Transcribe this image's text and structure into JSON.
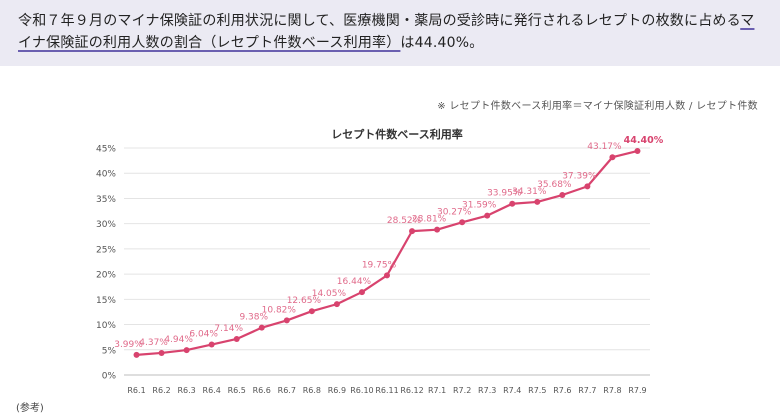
{
  "header": {
    "text_before": "令和７年９月のマイナ保険証の利用状況に関して、医療機関・薬局の受診時に発行されるレセプトの枚数に占める",
    "text_underlined": "マイナ保険証の利用人数の割合（レセプト件数ベース利用率）",
    "text_after": "は44.40%。"
  },
  "note": "※ レセプト件数ベース利用率＝マイナ保険証利用人数 / レセプト件数",
  "bottom_label": "(参考)",
  "chart_data": {
    "type": "line",
    "title": "レセプト件数ベース利用率",
    "categories": [
      "R6.1",
      "R6.2",
      "R6.3",
      "R6.4",
      "R6.5",
      "R6.6",
      "R6.7",
      "R6.8",
      "R6.9",
      "R6.10",
      "R6.11",
      "R6.12",
      "R7.1",
      "R7.2",
      "R7.3",
      "R7.4",
      "R7.5",
      "R7.6",
      "R7.7",
      "R7.8",
      "R7.9"
    ],
    "values": [
      3.99,
      4.37,
      4.94,
      6.04,
      7.14,
      9.38,
      10.82,
      12.65,
      14.05,
      16.44,
      19.75,
      28.52,
      28.81,
      30.27,
      31.59,
      33.95,
      34.31,
      35.68,
      37.39,
      43.17,
      44.4
    ],
    "data_labels": [
      "3.99%",
      "4.37%",
      "4.94%",
      "6.04%",
      "7.14%",
      "9.38%",
      "10.82%",
      "12.65%",
      "14.05%",
      "16.44%",
      "19.75%",
      "28.52%",
      "28.81%",
      "30.27%",
      "31.59%",
      "33.95%",
      "34.31%",
      "35.68%",
      "37.39%",
      "43.17%",
      "44.40%"
    ],
    "y_ticks": [
      "0%",
      "5%",
      "10%",
      "15%",
      "20%",
      "25%",
      "30%",
      "35%",
      "40%",
      "45%"
    ],
    "ylim": [
      0,
      45
    ],
    "grid": true,
    "colors": {
      "line": "#d8436e",
      "label": "#e06a8a",
      "last_label": "#d8436e",
      "grid": "#e4e4e4"
    }
  }
}
